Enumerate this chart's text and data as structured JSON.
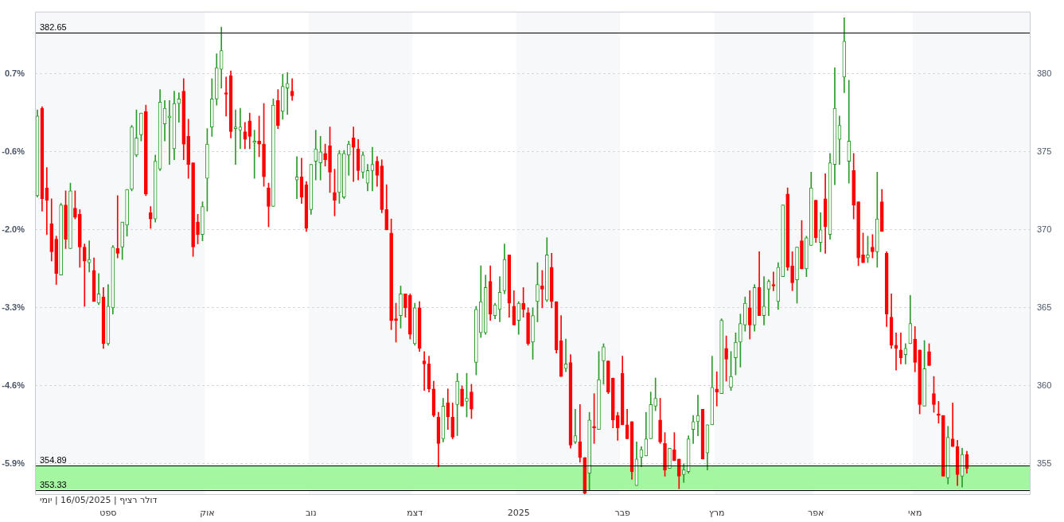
{
  "chart_data": {
    "type": "candlestick",
    "categories": [
      null,
      null,
      null,
      null,
      null,
      null,
      null,
      null,
      null,
      null,
      null,
      null,
      null,
      null,
      null,
      "ספט",
      null,
      null,
      null,
      null,
      null,
      null,
      null,
      null,
      null,
      null,
      null,
      null,
      null,
      null,
      null,
      null,
      null,
      null,
      null,
      null,
      "אוק",
      null,
      null,
      null,
      null,
      null,
      null,
      null,
      null,
      null,
      null,
      null,
      null,
      null,
      null,
      null,
      null,
      null,
      null,
      null,
      null,
      null,
      "נוב",
      null,
      null,
      null,
      null,
      null,
      null,
      null,
      null,
      null,
      null,
      null,
      null,
      null,
      null,
      null,
      null,
      null,
      null,
      null,
      null,
      null,
      "דצמ",
      null,
      null,
      null,
      null,
      null,
      null,
      null,
      null,
      null,
      null,
      null,
      null,
      null,
      null,
      null,
      null,
      null,
      null,
      null,
      null,
      null,
      "2025",
      null,
      null,
      null,
      null,
      null,
      null,
      null,
      null,
      null,
      null,
      null,
      null,
      null,
      null,
      null,
      null,
      null,
      null,
      null,
      null,
      null,
      "פבר",
      null,
      null,
      null,
      null,
      null,
      null,
      null,
      null,
      null,
      null,
      null,
      null,
      null,
      null,
      null,
      null,
      null,
      null,
      null,
      "מרץ",
      null,
      null,
      null,
      null,
      null,
      null,
      null,
      null,
      null,
      null,
      null,
      null,
      null,
      null,
      null,
      null,
      null,
      null,
      null,
      null,
      "אפר",
      null,
      null,
      null,
      null,
      null,
      null,
      null,
      null,
      null,
      null,
      null,
      null,
      null,
      null,
      null,
      null,
      null,
      null,
      null,
      null,
      "מאי",
      null,
      null,
      null,
      null,
      null,
      null,
      null,
      null,
      null,
      null,
      null,
      null,
      null,
      null,
      null,
      null,
      null,
      null,
      null,
      null,
      null,
      null,
      null,
      null
    ],
    "ohlc": [
      [
        372.2,
        377.7,
        372.1,
        377.3
      ],
      [
        377.8,
        377.9,
        371.2,
        372.0
      ],
      [
        372.7,
        374.0,
        369.7,
        371.9
      ],
      [
        370.4,
        372.0,
        368.0,
        368.6
      ],
      [
        369.4,
        369.6,
        366.5,
        367.2
      ],
      [
        367.1,
        371.7,
        367.1,
        371.6
      ],
      [
        371.6,
        372.5,
        368.8,
        369.4
      ],
      [
        368.8,
        373.0,
        368.8,
        372.5
      ],
      [
        371.4,
        372.5,
        370.7,
        370.8
      ],
      [
        371.0,
        371.3,
        367.6,
        368.9
      ],
      [
        368.9,
        369.1,
        365.1,
        368.0
      ],
      [
        367.9,
        369.3,
        367.3,
        368.1
      ],
      [
        367.4,
        368.2,
        365.4,
        365.4
      ],
      [
        365.3,
        367.2,
        365.2,
        365.9
      ],
      [
        365.7,
        366.3,
        362.4,
        362.7
      ],
      [
        362.7,
        366.5,
        362.6,
        365.1
      ],
      [
        365.0,
        369.0,
        364.6,
        368.9
      ],
      [
        368.8,
        372.2,
        368.2,
        368.5
      ],
      [
        368.9,
        370.5,
        368.1,
        370.5
      ],
      [
        370.3,
        372.6,
        369.6,
        372.6
      ],
      [
        372.6,
        376.7,
        372.5,
        376.6
      ],
      [
        374.8,
        377.7,
        374.7,
        375.9
      ],
      [
        376.1,
        377.5,
        375.7,
        377.5
      ],
      [
        377.6,
        378.0,
        372.2,
        372.3
      ],
      [
        371.1,
        371.5,
        370.1,
        370.7
      ],
      [
        370.7,
        374.8,
        370.5,
        374.4
      ],
      [
        373.9,
        379.0,
        373.8,
        378.2
      ],
      [
        376.8,
        378.3,
        375.7,
        377.8
      ],
      [
        377.2,
        378.3,
        374.2,
        377.3
      ],
      [
        375.2,
        378.9,
        374.5,
        378.1
      ],
      [
        378.1,
        378.8,
        376.9,
        378.4
      ],
      [
        378.9,
        379.7,
        374.5,
        375.5
      ],
      [
        376.0,
        377.1,
        373.3,
        374.2
      ],
      [
        374.3,
        374.3,
        368.3,
        368.9
      ],
      [
        370.5,
        371.0,
        369.1,
        369.7
      ],
      [
        369.7,
        371.8,
        369.3,
        371.5
      ],
      [
        373.3,
        376.5,
        371.2,
        375.5
      ],
      [
        376.6,
        379.7,
        376.0,
        378.4
      ],
      [
        378.4,
        381.3,
        378.0,
        380.4
      ],
      [
        380.3,
        383.0,
        379.1,
        381.5
      ],
      [
        378.8,
        379.8,
        377.3,
        378.7
      ],
      [
        379.9,
        380.2,
        375.9,
        376.3
      ],
      [
        376.5,
        377.7,
        374.2,
        376.6
      ],
      [
        376.4,
        377.8,
        375.2,
        376.6
      ],
      [
        376.3,
        376.9,
        375.2,
        375.8
      ],
      [
        377.0,
        377.5,
        375.2,
        376.0
      ],
      [
        375.6,
        376.4,
        373.3,
        375.7
      ],
      [
        375.7,
        377.3,
        374.7,
        375.5
      ],
      [
        375.5,
        378.1,
        372.8,
        373.4
      ],
      [
        372.7,
        373.0,
        370.2,
        371.5
      ],
      [
        371.5,
        378.4,
        371.5,
        378.0
      ],
      [
        378.3,
        379.0,
        376.5,
        376.7
      ],
      [
        377.6,
        380.0,
        377.1,
        379.2
      ],
      [
        379.1,
        380.1,
        377.4,
        379.4
      ],
      [
        378.9,
        379.7,
        378.3,
        378.6
      ],
      [
        373.2,
        374.7,
        372.0,
        373.4
      ],
      [
        373.4,
        374.6,
        371.7,
        372.1
      ],
      [
        372.9,
        373.1,
        369.9,
        370.1
      ],
      [
        371.3,
        374.2,
        371.0,
        374.2
      ],
      [
        374.4,
        376.4,
        373.2,
        375.2
      ],
      [
        374.3,
        376.0,
        373.2,
        375.0
      ],
      [
        374.9,
        375.5,
        374.1,
        374.5
      ],
      [
        375.4,
        376.6,
        372.4,
        373.7
      ],
      [
        372.4,
        373.9,
        370.9,
        371.9
      ],
      [
        372.4,
        375.1,
        371.7,
        374.9
      ],
      [
        372.1,
        375.1,
        372.0,
        374.9
      ],
      [
        374.8,
        375.7,
        373.5,
        375.5
      ],
      [
        375.9,
        376.6,
        373.1,
        375.3
      ],
      [
        375.2,
        375.8,
        373.2,
        373.8
      ],
      [
        373.7,
        375.0,
        373.3,
        374.8
      ],
      [
        373.0,
        374.2,
        372.5,
        373.8
      ],
      [
        373.8,
        375.3,
        372.5,
        374.2
      ],
      [
        374.4,
        374.7,
        372.8,
        373.5
      ],
      [
        374.1,
        374.5,
        371.1,
        371.3
      ],
      [
        371.3,
        372.9,
        370.0,
        370.0
      ],
      [
        369.8,
        370.7,
        363.6,
        364.2
      ],
      [
        364.3,
        365.3,
        362.8,
        364.2
      ],
      [
        364.5,
        366.4,
        363.7,
        365.9
      ],
      [
        365.9,
        365.9,
        364.4,
        365.0
      ],
      [
        365.8,
        365.9,
        363.0,
        363.3
      ],
      [
        362.7,
        365.3,
        362.6,
        365.0
      ],
      [
        365.0,
        365.4,
        362.2,
        362.4
      ],
      [
        361.6,
        362.2,
        359.7,
        361.4
      ],
      [
        361.4,
        361.9,
        359.6,
        359.8
      ],
      [
        359.8,
        360.3,
        358.0,
        358.1
      ],
      [
        358.0,
        358.3,
        354.8,
        356.3
      ],
      [
        356.6,
        359.2,
        356.4,
        358.7
      ],
      [
        358.9,
        359.8,
        357.2,
        358.0
      ],
      [
        358.0,
        358.9,
        356.6,
        356.7
      ],
      [
        358.8,
        360.8,
        356.8,
        360.3
      ],
      [
        359.8,
        360.0,
        358.7,
        358.7
      ],
      [
        359.0,
        360.8,
        358.0,
        359.2
      ],
      [
        359.6,
        360.1,
        357.9,
        358.5
      ],
      [
        361.5,
        365.1,
        360.7,
        364.9
      ],
      [
        363.4,
        367.7,
        363.1,
        365.4
      ],
      [
        363.4,
        367.1,
        363.3,
        366.3
      ],
      [
        366.7,
        367.7,
        364.2,
        364.6
      ],
      [
        364.5,
        365.3,
        364.3,
        365.2
      ],
      [
        364.9,
        367.0,
        364.1,
        366.0
      ],
      [
        366.1,
        369.1,
        365.9,
        368.1
      ],
      [
        368.4,
        368.4,
        364.4,
        365.3
      ],
      [
        365.1,
        366.1,
        363.9,
        363.9
      ],
      [
        364.2,
        365.4,
        363.3,
        365.3
      ],
      [
        365.3,
        366.3,
        364.4,
        364.9
      ],
      [
        364.7,
        365.0,
        362.6,
        362.7
      ],
      [
        362.8,
        365.0,
        361.7,
        364.5
      ],
      [
        365.4,
        367.9,
        364.1,
        366.5
      ],
      [
        366.4,
        367.4,
        365.0,
        366.2
      ],
      [
        365.5,
        369.5,
        365.4,
        368.4
      ],
      [
        367.6,
        368.5,
        365.0,
        365.4
      ],
      [
        365.4,
        365.4,
        362.1,
        362.3
      ],
      [
        362.9,
        364.5,
        360.6,
        360.6
      ],
      [
        361.1,
        363.0,
        360.9,
        361.4
      ],
      [
        361.5,
        362.0,
        356.0,
        356.2
      ],
      [
        356.4,
        358.5,
        356.3,
        356.8
      ],
      [
        356.4,
        358.8,
        355.1,
        355.4
      ],
      [
        355.4,
        355.4,
        353.0,
        353.1
      ],
      [
        354.4,
        358.3,
        353.3,
        357.8
      ],
      [
        357.4,
        359.5,
        356.3,
        357.3
      ],
      [
        357.2,
        362.2,
        357.2,
        360.4
      ],
      [
        361.6,
        362.7,
        360.1,
        362.5
      ],
      [
        361.6,
        361.6,
        359.5,
        359.6
      ],
      [
        360.5,
        360.5,
        357.3,
        357.8
      ],
      [
        358.1,
        358.3,
        356.5,
        357.3
      ],
      [
        360.8,
        361.9,
        357.5,
        357.5
      ],
      [
        357.5,
        358.5,
        356.6,
        356.6
      ],
      [
        357.7,
        357.7,
        354.0,
        354.5
      ],
      [
        353.6,
        356.4,
        353.6,
        355.3
      ],
      [
        355.4,
        356.1,
        354.8,
        355.9
      ],
      [
        355.5,
        358.3,
        355.5,
        356.6
      ],
      [
        356.6,
        359.6,
        356.6,
        358.8
      ],
      [
        358.7,
        360.5,
        358.4,
        359.2
      ],
      [
        357.8,
        359.2,
        356.3,
        356.4
      ],
      [
        356.3,
        357.0,
        354.2,
        354.6
      ],
      [
        354.7,
        356.0,
        354.7,
        356.0
      ],
      [
        355.9,
        357.0,
        355.2,
        355.2
      ],
      [
        355.3,
        355.3,
        353.4,
        354.2
      ],
      [
        354.3,
        355.0,
        353.8,
        354.6
      ],
      [
        354.5,
        356.8,
        354.4,
        356.6
      ],
      [
        357.2,
        358.1,
        356.3,
        357.7
      ],
      [
        357.7,
        359.4,
        356.8,
        358.1
      ],
      [
        358.5,
        358.5,
        355.3,
        355.3
      ],
      [
        355.7,
        357.5,
        354.6,
        357.5
      ],
      [
        357.5,
        361.9,
        357.5,
        359.9
      ],
      [
        359.8,
        360.9,
        358.7,
        359.6
      ],
      [
        359.5,
        364.3,
        359.5,
        364.2
      ],
      [
        362.4,
        363.2,
        360.3,
        361.7
      ],
      [
        359.9,
        362.2,
        359.7,
        360.6
      ],
      [
        361.8,
        363.4,
        360.7,
        362.8
      ],
      [
        362.8,
        364.6,
        361.2,
        364.0
      ],
      [
        363.9,
        365.7,
        363.5,
        365.3
      ],
      [
        365.0,
        366.1,
        363.0,
        363.9
      ],
      [
        363.9,
        366.5,
        363.5,
        366.3
      ],
      [
        366.3,
        368.6,
        364.5,
        364.5
      ],
      [
        364.5,
        367.0,
        363.9,
        365.1
      ],
      [
        366.2,
        366.8,
        364.5,
        366.7
      ],
      [
        366.5,
        367.3,
        366.1,
        366.4
      ],
      [
        365.4,
        367.9,
        364.9,
        367.6
      ],
      [
        367.0,
        371.6,
        367.0,
        371.6
      ],
      [
        372.3,
        372.7,
        367.4,
        367.6
      ],
      [
        367.7,
        368.6,
        366.1,
        366.6
      ],
      [
        366.8,
        368.9,
        365.3,
        368.9
      ],
      [
        369.3,
        370.6,
        367.5,
        367.5
      ],
      [
        367.5,
        369.6,
        367.0,
        369.5
      ],
      [
        369.0,
        373.7,
        369.0,
        372.7
      ],
      [
        371.9,
        371.9,
        369.2,
        369.5
      ],
      [
        369.2,
        371.1,
        368.6,
        370.0
      ],
      [
        372.0,
        373.6,
        368.5,
        370.2
      ],
      [
        369.7,
        374.9,
        369.4,
        374.3
      ],
      [
        374.2,
        380.4,
        372.9,
        377.8
      ],
      [
        375.8,
        377.3,
        374.2,
        376.7
      ],
      [
        379.8,
        383.6,
        378.8,
        382.1
      ],
      [
        374.4,
        379.6,
        373.0,
        375.7
      ],
      [
        373.8,
        374.9,
        370.7,
        371.6
      ],
      [
        371.8,
        371.8,
        367.7,
        368.2
      ],
      [
        368.4,
        369.8,
        367.9,
        367.9
      ],
      [
        368.2,
        369.6,
        367.9,
        368.4
      ],
      [
        368.9,
        369.7,
        368.2,
        368.6
      ],
      [
        368.6,
        373.7,
        367.6,
        370.7
      ],
      [
        371.8,
        372.6,
        369.9,
        369.9
      ],
      [
        368.5,
        368.6,
        363.8,
        364.6
      ],
      [
        364.4,
        365.9,
        362.4,
        362.6
      ],
      [
        362.6,
        363.4,
        361.0,
        362.4
      ],
      [
        362.3,
        363.4,
        361.4,
        361.8
      ],
      [
        362.0,
        362.7,
        361.4,
        362.4
      ],
      [
        362.7,
        365.8,
        362.7,
        364.0
      ],
      [
        363.0,
        363.8,
        360.9,
        361.5
      ],
      [
        362.3,
        362.3,
        358.2,
        358.8
      ],
      [
        358.7,
        362.9,
        358.7,
        361.1
      ],
      [
        362.2,
        362.7,
        361.3,
        361.3
      ],
      [
        359.5,
        360.6,
        358.3,
        358.8
      ],
      [
        358.2,
        359.0,
        357.6,
        358.1
      ],
      [
        358.1,
        358.1,
        354.2,
        354.2
      ],
      [
        354.1,
        357.4,
        353.7,
        356.7
      ],
      [
        356.6,
        358.9,
        356.1,
        356.1
      ],
      [
        356.1,
        356.5,
        353.6,
        354.3
      ],
      [
        354.2,
        356.0,
        353.5,
        355.6
      ],
      [
        355.6,
        355.8,
        354.4,
        354.7
      ],
      null,
      null,
      null,
      null,
      null,
      null,
      null,
      null,
      null,
      null,
      null,
      null,
      null
    ],
    "ylim": [
      353,
      384
    ],
    "yticks": [
      355,
      360,
      365,
      370,
      375,
      380
    ],
    "y2lim": [
      -6.448,
      1.736
    ],
    "y2ticks": [
      {
        "value": 0.68,
        "label": "0.7%"
      },
      {
        "value": -0.64,
        "label": "-0.6%"
      },
      {
        "value": -1.96,
        "label": "-2.0%"
      },
      {
        "value": -3.28,
        "label": "-3.3%"
      },
      {
        "value": -4.6,
        "label": "-4.6%"
      },
      {
        "value": -5.92,
        "label": "-5.9%"
      }
    ],
    "grid": "y",
    "legend": false,
    "ref_lines": [
      {
        "axis": "y",
        "value": 382.65,
        "label": "382.65",
        "color": "#000000"
      },
      {
        "axis": "y",
        "value": 354.89,
        "label": "354.89",
        "color": "#000000"
      },
      {
        "axis": "y",
        "value": 353.33,
        "label": "353.33",
        "color": "#000000"
      }
    ],
    "bands": [
      {
        "axis": "y",
        "from": 353.33,
        "to": 354.89,
        "color": "#a4f7a0"
      },
      {
        "axis": "x",
        "from": "אוק",
        "to": "נוב",
        "color": "#ffffff"
      },
      {
        "axis": "x",
        "from": "דצמ",
        "to": "2025",
        "color": "#ffffff"
      },
      {
        "axis": "x",
        "from": "פבר",
        "to": "מרץ",
        "color": "#ffffff"
      },
      {
        "axis": "x",
        "from": "אפר",
        "to": "מאי",
        "color": "#ffffff"
      }
    ],
    "annotations": [
      "דולר רציף | 16/05/2025 | יומי"
    ]
  }
}
